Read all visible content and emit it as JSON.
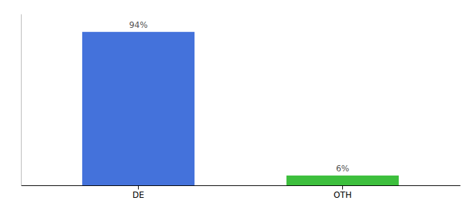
{
  "chart_data": {
    "type": "bar",
    "categories": [
      "DE",
      "OTH"
    ],
    "values": [
      94,
      6
    ],
    "value_labels": [
      "94%",
      "6%"
    ],
    "colors": [
      "#4472db",
      "#3dbf3d"
    ],
    "ylim": [
      0,
      105
    ],
    "data_labels": true,
    "tick_labels": "x"
  }
}
